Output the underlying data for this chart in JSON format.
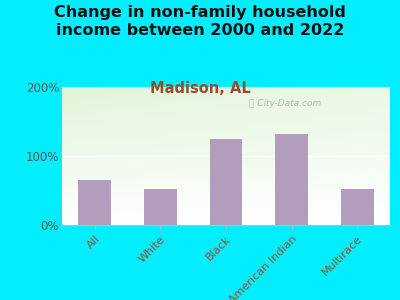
{
  "title": "Change in non-family household\nincome between 2000 and 2022",
  "subtitle": "Madison, AL",
  "categories": [
    "All",
    "White",
    "Black",
    "American Indian",
    "Multirace"
  ],
  "values": [
    65,
    52,
    125,
    132,
    52
  ],
  "bar_color": "#b39dbd",
  "title_fontsize": 11.5,
  "subtitle_fontsize": 10.5,
  "subtitle_color": "#9e4a2a",
  "tick_label_color": "#9e4a2a",
  "ytick_label_color": "#555555",
  "background_outer": "#00eeff",
  "ylim": [
    0,
    200
  ],
  "ytick_labels": [
    "0%",
    "100%",
    "200%"
  ],
  "watermark": "City-Data.com"
}
